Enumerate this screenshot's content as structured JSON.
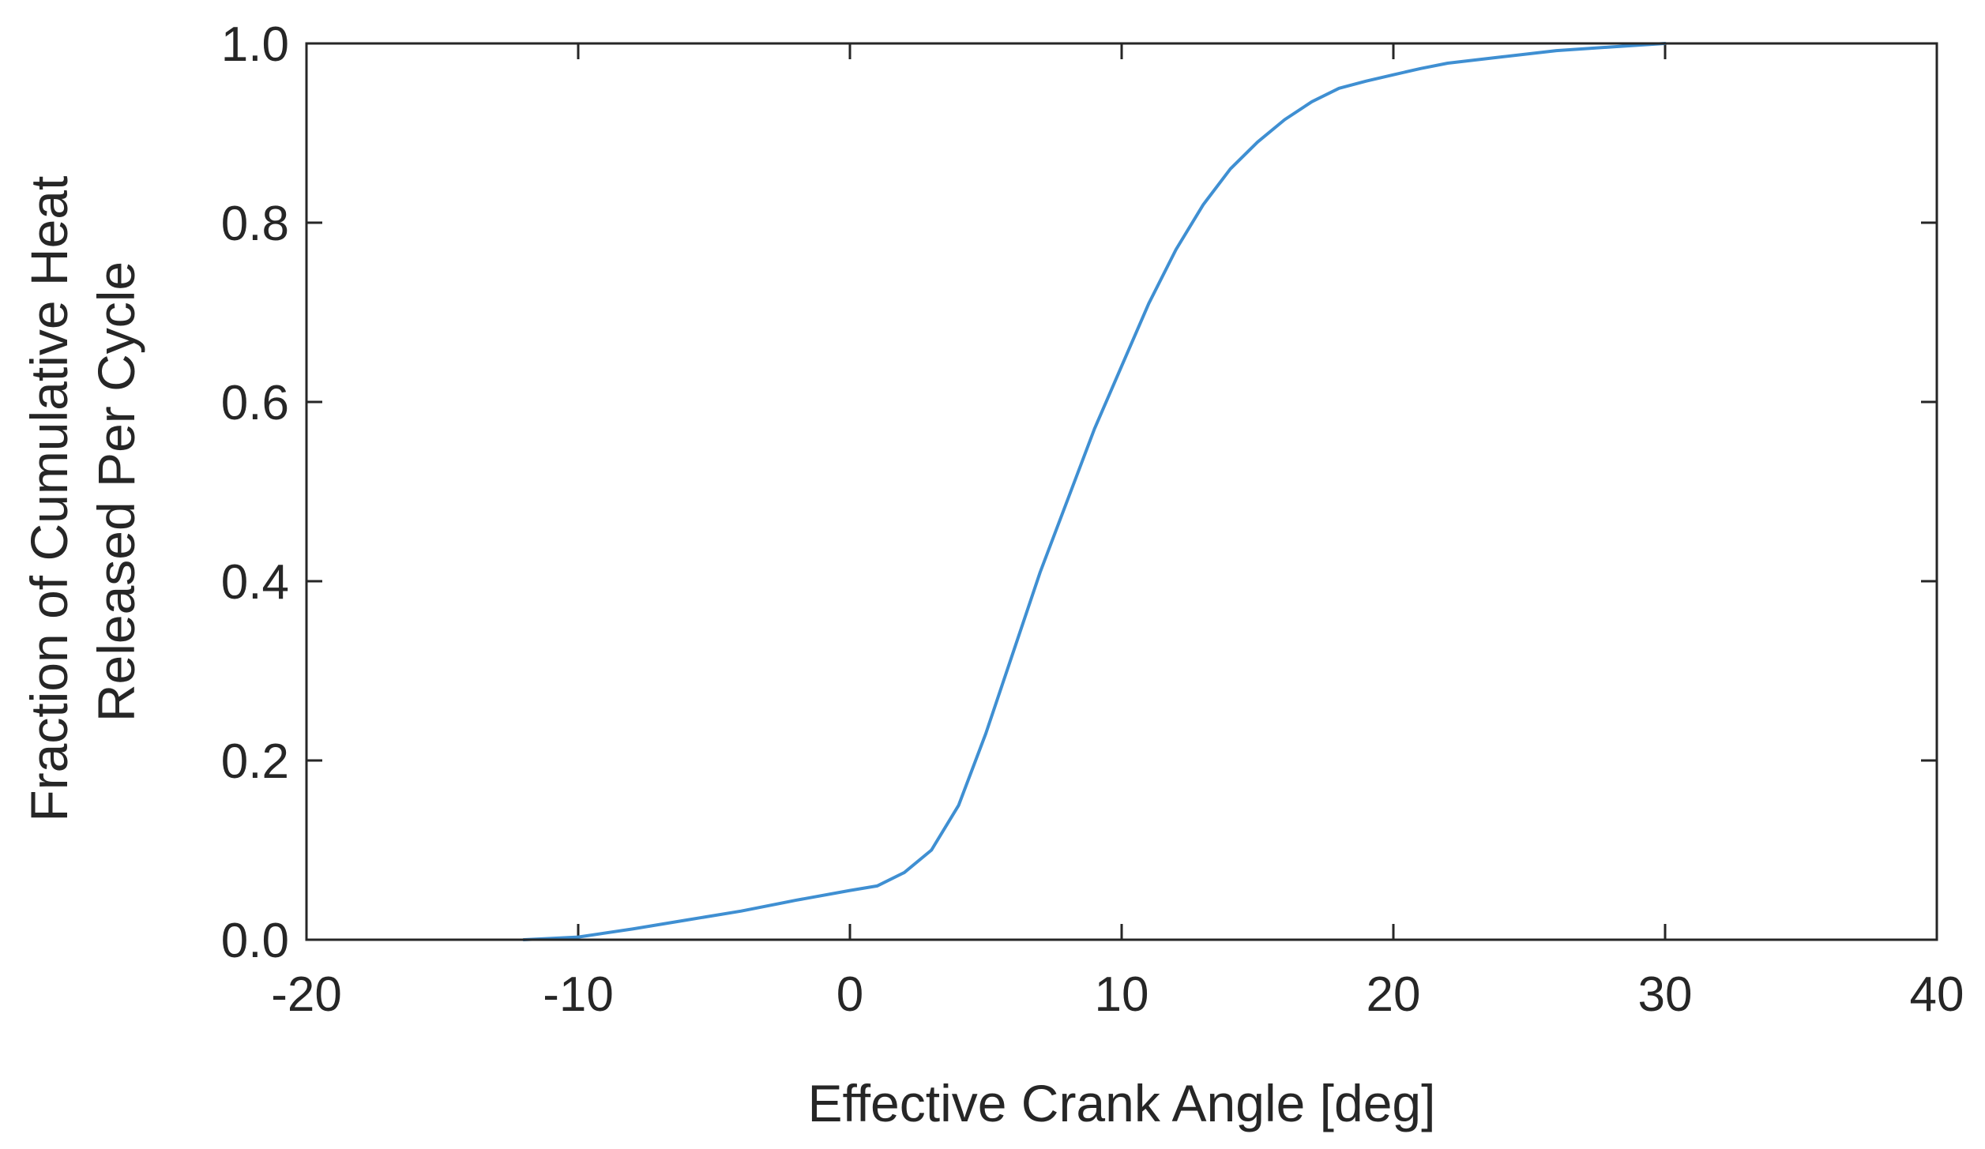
{
  "chart_data": {
    "type": "line",
    "xlabel": "Effective Crank Angle [deg]",
    "ylabel_lines": [
      "Fraction of Cumulative Heat",
      "Released Per Cycle"
    ],
    "xlim": [
      -20,
      40
    ],
    "ylim": [
      0.0,
      1.0
    ],
    "x_ticks": [
      -20,
      -10,
      0,
      10,
      20,
      30,
      40
    ],
    "x_tick_labels": [
      "-20",
      "-10",
      "0",
      "10",
      "20",
      "30",
      "40"
    ],
    "y_ticks": [
      0.0,
      0.2,
      0.4,
      0.6,
      0.8,
      1.0
    ],
    "y_tick_labels": [
      "0.0",
      "0.2",
      "0.4",
      "0.6",
      "0.8",
      "1.0"
    ],
    "grid": false,
    "line_color": "#3f8fd2",
    "series": [
      {
        "x": [
          -12,
          -10,
          -8,
          -6,
          -4,
          -2,
          0,
          1,
          2,
          3,
          4,
          5,
          6,
          7,
          8,
          9,
          10,
          11,
          12,
          13,
          14,
          15,
          16,
          17,
          18,
          19,
          20,
          21,
          22,
          24,
          26,
          28,
          30
        ],
        "y": [
          0.0,
          0.003,
          0.012,
          0.022,
          0.032,
          0.044,
          0.055,
          0.06,
          0.075,
          0.1,
          0.15,
          0.23,
          0.32,
          0.41,
          0.49,
          0.57,
          0.64,
          0.71,
          0.77,
          0.82,
          0.86,
          0.89,
          0.915,
          0.935,
          0.95,
          0.958,
          0.965,
          0.972,
          0.978,
          0.985,
          0.992,
          0.996,
          1.0
        ]
      }
    ]
  }
}
